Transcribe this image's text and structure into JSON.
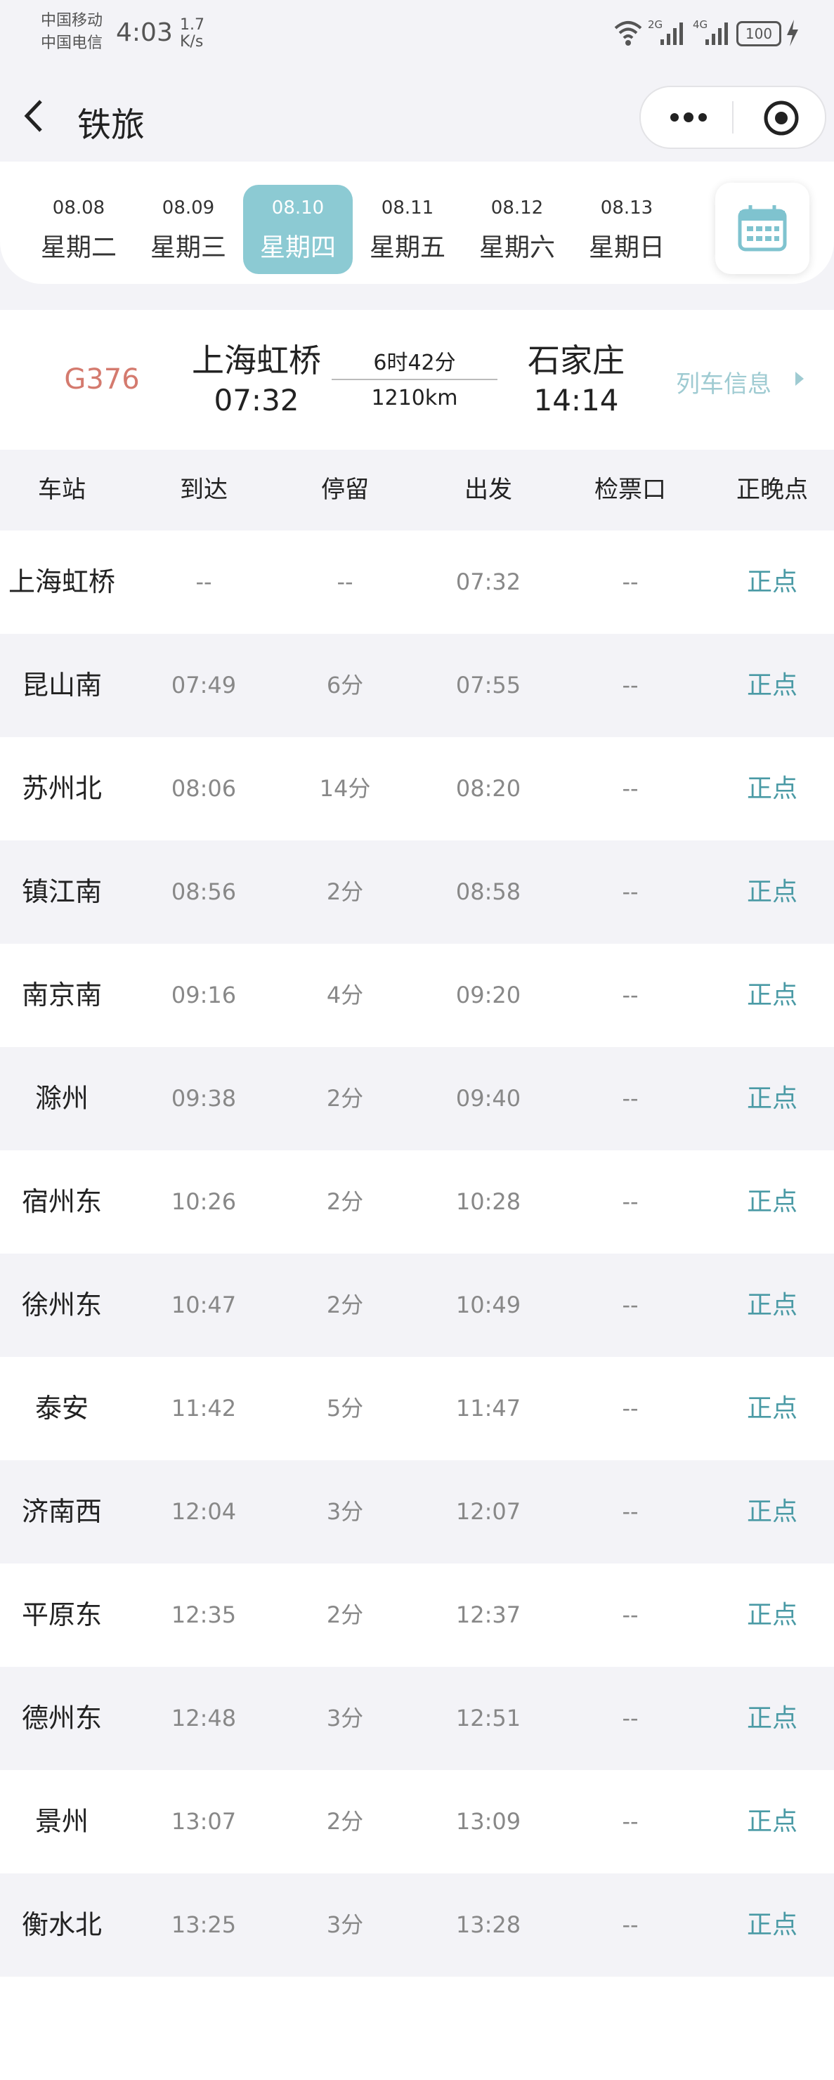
{
  "status_bar": {
    "carrier_1": "中国移动",
    "carrier_2": "中国电信",
    "time": "4:03",
    "speed": "1.7",
    "speed_unit": "K/s",
    "network_1": "2G",
    "network_2": "4G",
    "battery": "100"
  },
  "header": {
    "title": "铁旅"
  },
  "dates": {
    "selected": 2,
    "items": [
      {
        "date": "08.08",
        "weekday": "星期二"
      },
      {
        "date": "08.09",
        "weekday": "星期三"
      },
      {
        "date": "08.10",
        "weekday": "星期四"
      },
      {
        "date": "08.11",
        "weekday": "星期五"
      },
      {
        "date": "08.12",
        "weekday": "星期六"
      },
      {
        "date": "08.13",
        "weekday": "星期日"
      }
    ]
  },
  "train": {
    "number": "G376",
    "from": "上海虹桥",
    "depart": "07:32",
    "duration": "6时42分",
    "distance": "1210km",
    "to": "石家庄",
    "arrive": "14:14",
    "info_link": "列车信息"
  },
  "table": {
    "headers": [
      "车站",
      "到达",
      "停留",
      "出发",
      "检票口",
      "正晚点"
    ],
    "rows": [
      [
        "上海虹桥",
        "--",
        "--",
        "07:32",
        "--",
        "正点"
      ],
      [
        "昆山南",
        "07:49",
        "6分",
        "07:55",
        "--",
        "正点"
      ],
      [
        "苏州北",
        "08:06",
        "14分",
        "08:20",
        "--",
        "正点"
      ],
      [
        "镇江南",
        "08:56",
        "2分",
        "08:58",
        "--",
        "正点"
      ],
      [
        "南京南",
        "09:16",
        "4分",
        "09:20",
        "--",
        "正点"
      ],
      [
        "滁州",
        "09:38",
        "2分",
        "09:40",
        "--",
        "正点"
      ],
      [
        "宿州东",
        "10:26",
        "2分",
        "10:28",
        "--",
        "正点"
      ],
      [
        "徐州东",
        "10:47",
        "2分",
        "10:49",
        "--",
        "正点"
      ],
      [
        "泰安",
        "11:42",
        "5分",
        "11:47",
        "--",
        "正点"
      ],
      [
        "济南西",
        "12:04",
        "3分",
        "12:07",
        "--",
        "正点"
      ],
      [
        "平原东",
        "12:35",
        "2分",
        "12:37",
        "--",
        "正点"
      ],
      [
        "德州东",
        "12:48",
        "3分",
        "12:51",
        "--",
        "正点"
      ],
      [
        "景州",
        "13:07",
        "2分",
        "13:09",
        "--",
        "正点"
      ],
      [
        "衡水北",
        "13:25",
        "3分",
        "13:28",
        "--",
        "正点"
      ]
    ]
  }
}
